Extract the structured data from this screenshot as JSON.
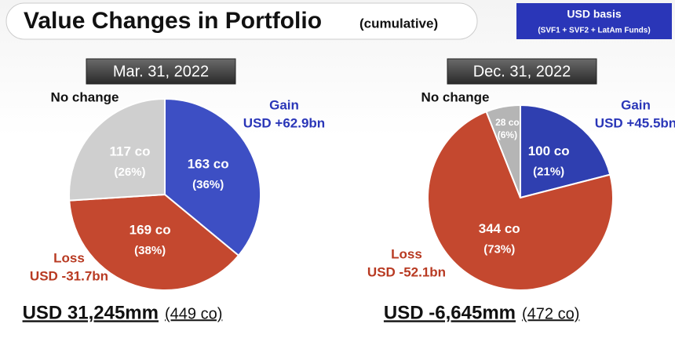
{
  "header": {
    "title": "Value Changes in Portfolio",
    "subtitle": "(cumulative)",
    "badge_title": "USD basis",
    "badge_note": "(SVF1 + SVF2 + LatAm Funds)"
  },
  "chart_data": [
    {
      "type": "pie",
      "title": "Mar. 31, 2022",
      "categories": [
        "Gain",
        "Loss",
        "No change"
      ],
      "amount_labels": [
        "USD +62.9bn",
        "USD -31.7bn",
        null
      ],
      "count_labels": [
        "163 co",
        "169 co",
        "117 co"
      ],
      "values": [
        36,
        38,
        26
      ],
      "value_labels": [
        "(36%)",
        "(38%)",
        "(26%)"
      ],
      "colors": [
        "#3d4fc4",
        "#c4482f",
        "#cfcfcf"
      ],
      "total": "USD 31,245mm",
      "company_count": "(449 co)"
    },
    {
      "type": "pie",
      "title": "Dec. 31, 2022",
      "categories": [
        "Gain",
        "Loss",
        "No change"
      ],
      "amount_labels": [
        "USD +45.5bn",
        "USD -52.1bn",
        null
      ],
      "count_labels": [
        "100 co",
        "344 co",
        "28 co"
      ],
      "values": [
        21,
        73,
        6
      ],
      "value_labels": [
        "(21%)",
        "(73%)",
        "(6%)"
      ],
      "colors": [
        "#2f3fb0",
        "#c4482f",
        "#b5b5b5"
      ],
      "total": "USD -6,645mm",
      "company_count": "(472 co)"
    }
  ]
}
